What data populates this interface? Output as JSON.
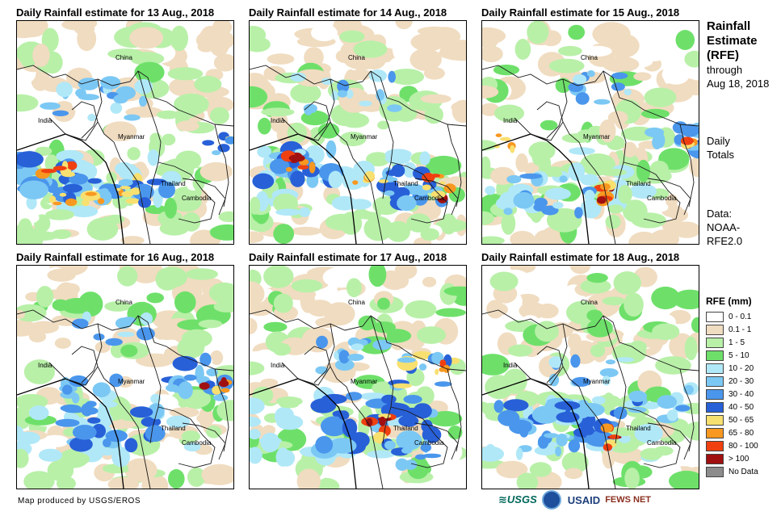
{
  "panels": [
    {
      "title": "Daily Rainfall estimate for 13 Aug., 2018",
      "variant": 0
    },
    {
      "title": "Daily Rainfall estimate for 14 Aug., 2018",
      "variant": 1
    },
    {
      "title": "Daily Rainfall estimate for 15 Aug., 2018",
      "variant": 2
    },
    {
      "title": "Daily Rainfall estimate for 16 Aug., 2018",
      "variant": 3
    },
    {
      "title": "Daily Rainfall estimate for 17 Aug., 2018",
      "variant": 4
    },
    {
      "title": "Daily Rainfall estimate for 18 Aug., 2018",
      "variant": 5
    }
  ],
  "map_labels": {
    "china": "China",
    "india": "India",
    "myanmar": "Myanmar",
    "thailand": "Thailand",
    "cambodia": "Cambodia"
  },
  "side": {
    "title_line1": "Rainfall",
    "title_line2": "Estimate",
    "title_line3": "(RFE)",
    "through": "through",
    "date": "Aug 18, 2018",
    "daily": "Daily",
    "totals": "Totals",
    "data_label": "Data:",
    "data_source1": "NOAA-",
    "data_source2": "RFE2.0"
  },
  "legend": {
    "title": "RFE (mm)",
    "items": [
      {
        "label": "0 - 0.1",
        "color": "#ffffff"
      },
      {
        "label": "0.1 - 1",
        "color": "#f0dcc0"
      },
      {
        "label": "1 - 5",
        "color": "#b8f0a8"
      },
      {
        "label": "5 - 10",
        "color": "#6ee06a"
      },
      {
        "label": "10 - 20",
        "color": "#b0e8f8"
      },
      {
        "label": "20 - 30",
        "color": "#7cc8f4"
      },
      {
        "label": "30 - 40",
        "color": "#4a96ec"
      },
      {
        "label": "40 - 50",
        "color": "#2860d8"
      },
      {
        "label": "50 - 65",
        "color": "#f8e070"
      },
      {
        "label": "65 - 80",
        "color": "#f89820"
      },
      {
        "label": "80 - 100",
        "color": "#f04010"
      },
      {
        "label": "> 100",
        "color": "#a01010"
      },
      {
        "label": "No Data",
        "color": "#8c8c8c"
      }
    ]
  },
  "credit": "Map produced by USGS/EROS",
  "logos": {
    "usgs": "≋USGS",
    "usaid": "USAID",
    "fews": "FEWS NET"
  }
}
